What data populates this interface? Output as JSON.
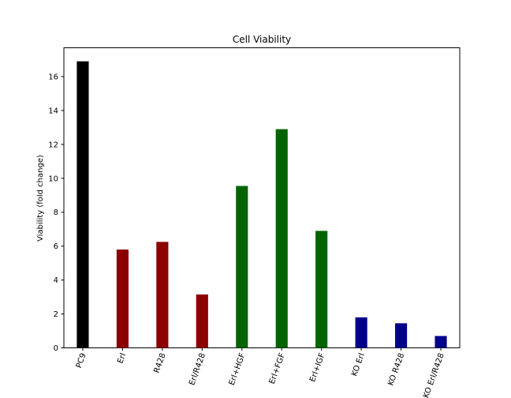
{
  "chart_data": {
    "type": "bar",
    "title": "Cell Viability",
    "xlabel": "",
    "ylabel": "Viability (fold change)",
    "ylim": [
      0,
      17.7
    ],
    "yticks": [
      0,
      2,
      4,
      6,
      8,
      10,
      12,
      14,
      16
    ],
    "grid": false,
    "categories": [
      "PC9",
      "Erl",
      "R428",
      "Erl/R428",
      "Erl+HGF",
      "Erl+FGF",
      "Erl+IGF",
      "KO Erl",
      "KO R428",
      "KO Erl/R428"
    ],
    "values": [
      16.9,
      5.8,
      6.25,
      3.15,
      9.55,
      12.9,
      6.9,
      1.8,
      1.45,
      0.7
    ],
    "colors": [
      "#000000",
      "#8b0000",
      "#8b0000",
      "#8b0000",
      "#006400",
      "#006400",
      "#006400",
      "#00008b",
      "#00008b",
      "#00008b"
    ],
    "xtick_rotation_deg": 70
  }
}
